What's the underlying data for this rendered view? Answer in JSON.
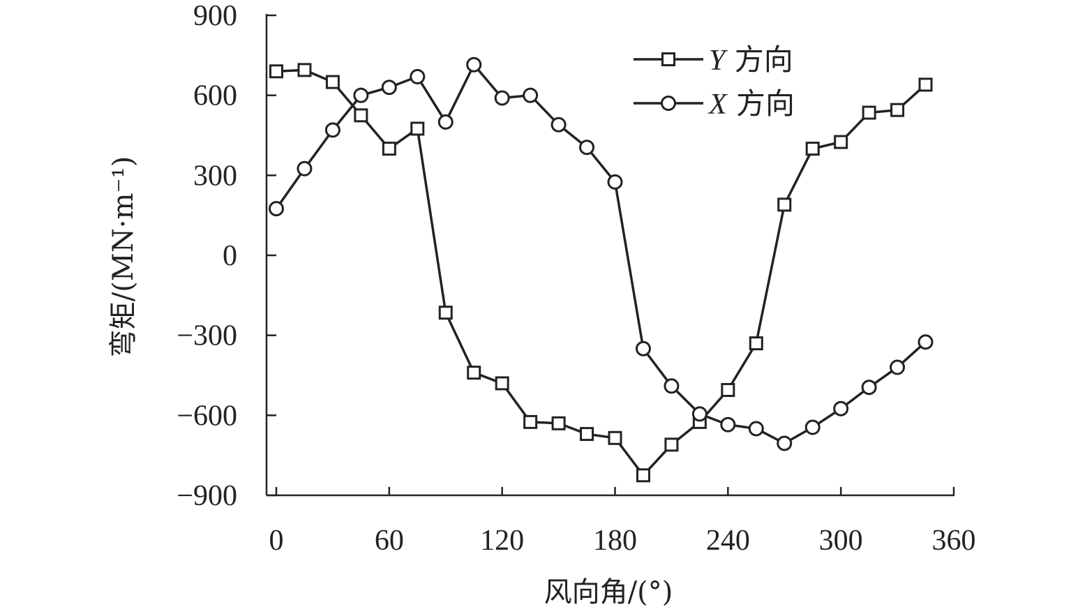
{
  "chart_data": {
    "type": "line",
    "xlabel": "风向角/(°)",
    "ylabel": "弯矩/(MN·m⁻¹)",
    "xlim": [
      0,
      360
    ],
    "ylim": [
      -900,
      900
    ],
    "xticks": [
      0,
      60,
      120,
      180,
      240,
      300,
      360
    ],
    "yticks": [
      900,
      600,
      300,
      0,
      -300,
      -600,
      -900
    ],
    "xtick_labels": [
      "0",
      "60",
      "120",
      "180",
      "240",
      "300",
      "360"
    ],
    "ytick_labels": [
      "900",
      "600",
      "300",
      "0",
      "−300",
      "−600",
      "−900"
    ],
    "grid": false,
    "legend_position": "top-right",
    "x": [
      0,
      15,
      30,
      45,
      60,
      75,
      90,
      105,
      120,
      135,
      150,
      165,
      180,
      195,
      210,
      225,
      240,
      255,
      270,
      285,
      300,
      315,
      330,
      345
    ],
    "series": [
      {
        "name": "Y 方向",
        "label_italic": "Y",
        "label_rest": " 方向",
        "marker": "square",
        "values": [
          690,
          695,
          650,
          525,
          400,
          475,
          -215,
          -440,
          -480,
          -625,
          -630,
          -670,
          -685,
          -825,
          -710,
          -625,
          -505,
          -330,
          190,
          400,
          425,
          535,
          545,
          640
        ]
      },
      {
        "name": "X 方向",
        "label_italic": "X",
        "label_rest": " 方向",
        "marker": "circle",
        "values": [
          175,
          325,
          470,
          600,
          630,
          670,
          500,
          715,
          590,
          600,
          490,
          405,
          275,
          -350,
          -490,
          -595,
          -635,
          -650,
          -705,
          -645,
          -575,
          -495,
          -420,
          -325
        ]
      }
    ]
  }
}
